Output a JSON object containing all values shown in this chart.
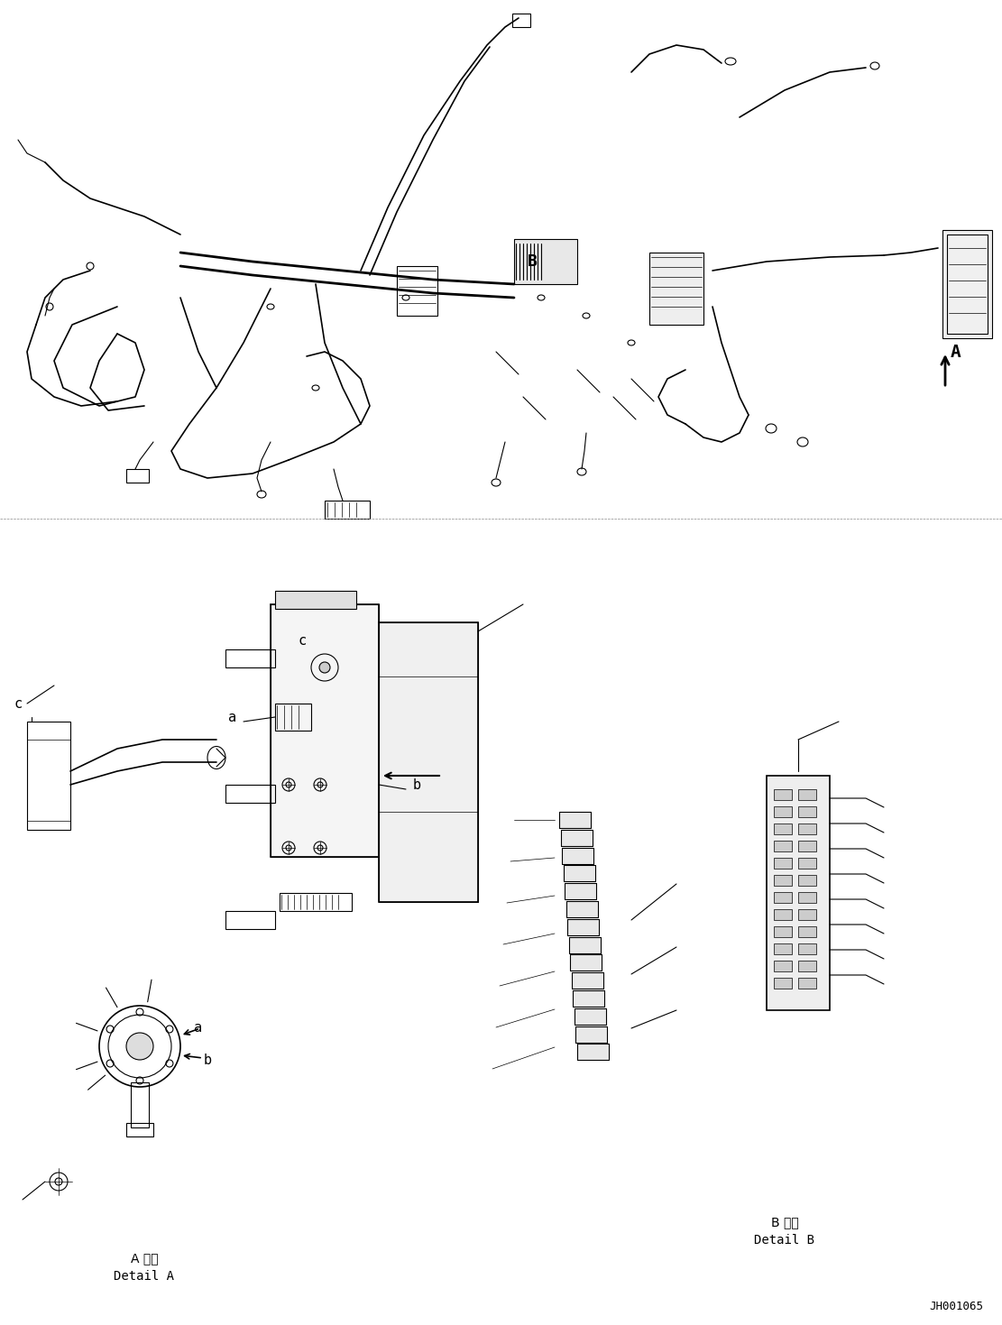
{
  "title": "",
  "background_color": "#ffffff",
  "line_color": "#000000",
  "fig_width": 11.11,
  "fig_height": 14.69,
  "dpi": 100,
  "label_A_japanese": "A 詳細",
  "label_A_english": "Detail A",
  "label_B_japanese": "B 詳細",
  "label_B_english": "Detail B",
  "ref_code": "JH001065",
  "labels": {
    "A": "A",
    "B": "B",
    "a_left": "a",
    "b_left": "b",
    "c_left": "c",
    "a_right": "a",
    "b_right": "b",
    "c_right": "c"
  }
}
